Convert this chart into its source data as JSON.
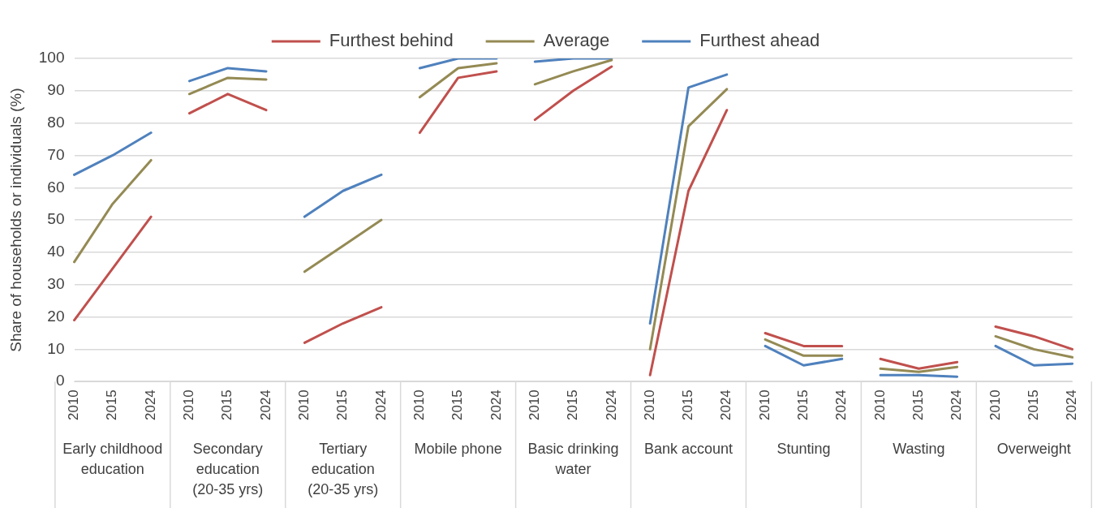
{
  "chart_data": {
    "type": "line",
    "ylabel": "Share of households or individuals (%)",
    "categories": [
      "2010",
      "2015",
      "2024",
      "2010",
      "2015",
      "2024",
      "2010",
      "2015",
      "2024",
      "2010",
      "2015",
      "2024",
      "2010",
      "2015",
      "2024",
      "2010",
      "2015",
      "2024",
      "2010",
      "2015",
      "2024",
      "2010",
      "2015",
      "2024",
      "2010",
      "2015",
      "2024"
    ],
    "annotations": [
      "Early childhood education",
      "Secondary education (20-35 yrs)",
      "Tertiary education (20-35 yrs)",
      "Mobile phone",
      "Basic drinking water",
      "Bank account",
      "Stunting",
      "Wasting",
      "Overweight"
    ],
    "series": [
      {
        "name": "Furthest behind",
        "color": "#c0504d",
        "values": [
          19,
          35,
          51,
          83,
          89,
          84,
          12,
          18,
          23,
          77,
          94,
          96,
          81,
          90,
          97.5,
          2,
          59,
          84,
          15,
          11,
          11,
          7,
          4,
          6,
          17,
          14,
          10
        ]
      },
      {
        "name": "Average",
        "color": "#948a54",
        "values": [
          37,
          55,
          68.5,
          89,
          94,
          93.5,
          34,
          42,
          50,
          88,
          97,
          98.5,
          92,
          96,
          99.5,
          10,
          79,
          90.5,
          13,
          8,
          8,
          4,
          3,
          4.5,
          14,
          10,
          7.5
        ]
      },
      {
        "name": "Furthest ahead",
        "color": "#4f81bd",
        "values": [
          64,
          70,
          77,
          93,
          97,
          96,
          51,
          59,
          64,
          97,
          100,
          100,
          99,
          100,
          100,
          18,
          91,
          95,
          11,
          5,
          7,
          2,
          2,
          1.5,
          11,
          5,
          5.5
        ]
      }
    ],
    "ylim": [
      0,
      100
    ],
    "yticks": [
      0,
      10,
      20,
      30,
      40,
      50,
      60,
      70,
      80,
      90,
      100
    ],
    "grid": "y",
    "legend": "top",
    "marker": "none",
    "line_style": "solid"
  }
}
